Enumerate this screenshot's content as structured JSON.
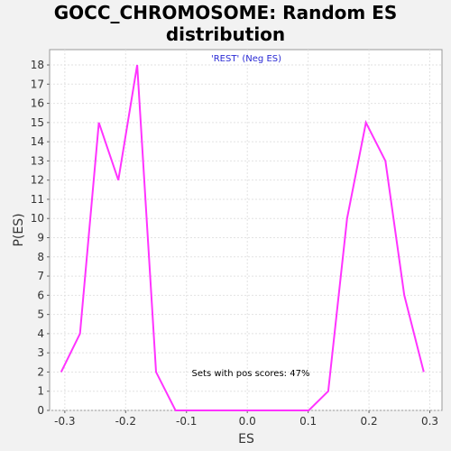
{
  "chart_data": {
    "type": "line",
    "title_line1": "GOCC_CHROMOSOME: Random ES",
    "title_line2": "distribution",
    "xlabel": "ES",
    "ylabel": "P(ES)",
    "legend": "'REST' (Neg ES)",
    "annotation": "Sets with pos scores: 47%",
    "xlim": [
      -0.325,
      0.32
    ],
    "ylim": [
      0,
      18.8
    ],
    "xticks": [
      -0.3,
      -0.2,
      -0.1,
      0.0,
      0.1,
      0.2,
      0.3
    ],
    "xtick_labels": [
      "-0.3",
      "-0.2",
      "-0.1",
      "0.0",
      "0.1",
      "0.2",
      "0.3"
    ],
    "yticks": [
      0,
      1,
      2,
      3,
      4,
      5,
      6,
      7,
      8,
      9,
      10,
      11,
      12,
      13,
      14,
      15,
      16,
      17,
      18
    ],
    "grid": true,
    "series": [
      {
        "color": "#ff33ff",
        "x": [
          -0.306,
          -0.275,
          -0.244,
          -0.212,
          -0.181,
          -0.15,
          -0.118,
          -0.087,
          -0.056,
          -0.024,
          0.007,
          0.038,
          0.07,
          0.101,
          0.133,
          0.164,
          0.195,
          0.227,
          0.258,
          0.29
        ],
        "y": [
          2,
          4,
          15,
          12,
          18,
          2,
          0,
          0,
          0,
          0,
          0,
          0,
          0,
          0,
          1,
          10,
          15,
          13,
          6,
          2
        ]
      }
    ]
  }
}
